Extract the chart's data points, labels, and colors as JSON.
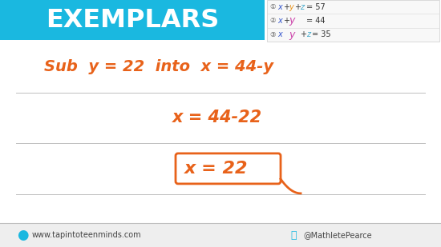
{
  "bg_color": "#ffffff",
  "footer_bg": "#eeeeee",
  "header_bg": "#1ab8e0",
  "header_text": "EXEMPLARS",
  "header_text_color": "#ffffff",
  "footer_left": "www.tapintoteenminds.com",
  "footer_right": "@MathletePearce",
  "footer_text_color": "#444444",
  "line_color": "#c8c8c8",
  "orange": "#e8621a",
  "blue": "#3355cc",
  "pink": "#cc44aa",
  "teal": "#44aacc",
  "yellow_orange": "#e8921a",
  "eq1_label": "①",
  "eq2_label": "②",
  "eq3_label": "③",
  "figw": 5.5,
  "figh": 3.09,
  "dpi": 100
}
